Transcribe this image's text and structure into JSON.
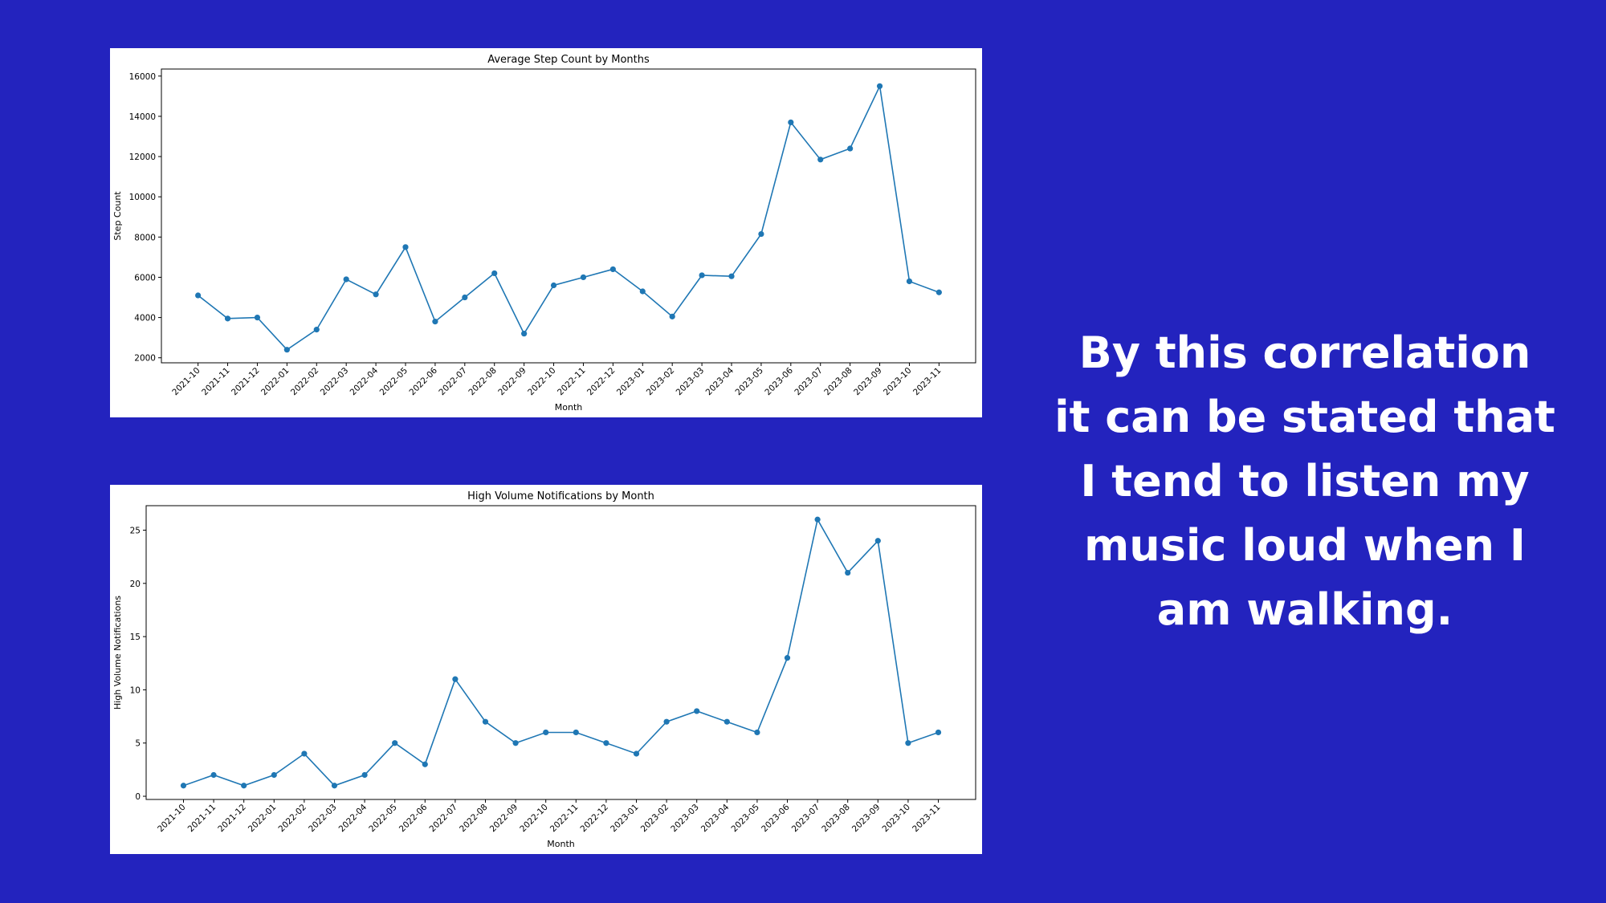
{
  "caption": {
    "lines": [
      "By this correlation",
      "it can be stated that",
      "I tend to listen my",
      "music loud when I",
      "am walking."
    ]
  },
  "colors": {
    "background": "#2323be",
    "series": "#1f77b4"
  },
  "chart_data": [
    {
      "type": "line",
      "title": "Average Step Count by Months",
      "xlabel": "Month",
      "ylabel": "Step Count",
      "grid": false,
      "markers": true,
      "ylim": [
        1750,
        16350
      ],
      "yticks": [
        2000,
        4000,
        6000,
        8000,
        10000,
        12000,
        14000,
        16000
      ],
      "categories": [
        "2021-10",
        "2021-11",
        "2021-12",
        "2022-01",
        "2022-02",
        "2022-03",
        "2022-04",
        "2022-05",
        "2022-06",
        "2022-07",
        "2022-08",
        "2022-09",
        "2022-10",
        "2022-11",
        "2022-12",
        "2023-01",
        "2023-02",
        "2023-03",
        "2023-04",
        "2023-05",
        "2023-06",
        "2023-07",
        "2023-08",
        "2023-09",
        "2023-10",
        "2023-11"
      ],
      "series": [
        {
          "values": [
            5100,
            3950,
            4000,
            2400,
            3400,
            5900,
            5150,
            7500,
            3800,
            5000,
            6200,
            3200,
            5600,
            6000,
            6400,
            5300,
            4050,
            6100,
            6050,
            8150,
            13700,
            11850,
            12400,
            15500,
            5800,
            5250
          ]
        }
      ]
    },
    {
      "type": "line",
      "title": "High Volume Notifications by Month",
      "xlabel": "Month",
      "ylabel": "High Volume Notifications",
      "grid": false,
      "markers": true,
      "ylim": [
        -0.3,
        27.3
      ],
      "yticks": [
        0,
        5,
        10,
        15,
        20,
        25
      ],
      "categories": [
        "2021-10",
        "2021-11",
        "2021-12",
        "2022-01",
        "2022-02",
        "2022-03",
        "2022-04",
        "2022-05",
        "2022-06",
        "2022-07",
        "2022-08",
        "2022-09",
        "2022-10",
        "2022-11",
        "2022-12",
        "2023-01",
        "2023-02",
        "2023-03",
        "2023-04",
        "2023-05",
        "2023-06",
        "2023-07",
        "2023-08",
        "2023-09",
        "2023-10",
        "2023-11"
      ],
      "series": [
        {
          "values": [
            1,
            2,
            1,
            2,
            4,
            1,
            2,
            5,
            3,
            11,
            7,
            5,
            6,
            6,
            5,
            4,
            7,
            8,
            7,
            6,
            13,
            26,
            21,
            24,
            5,
            6
          ]
        }
      ]
    }
  ]
}
